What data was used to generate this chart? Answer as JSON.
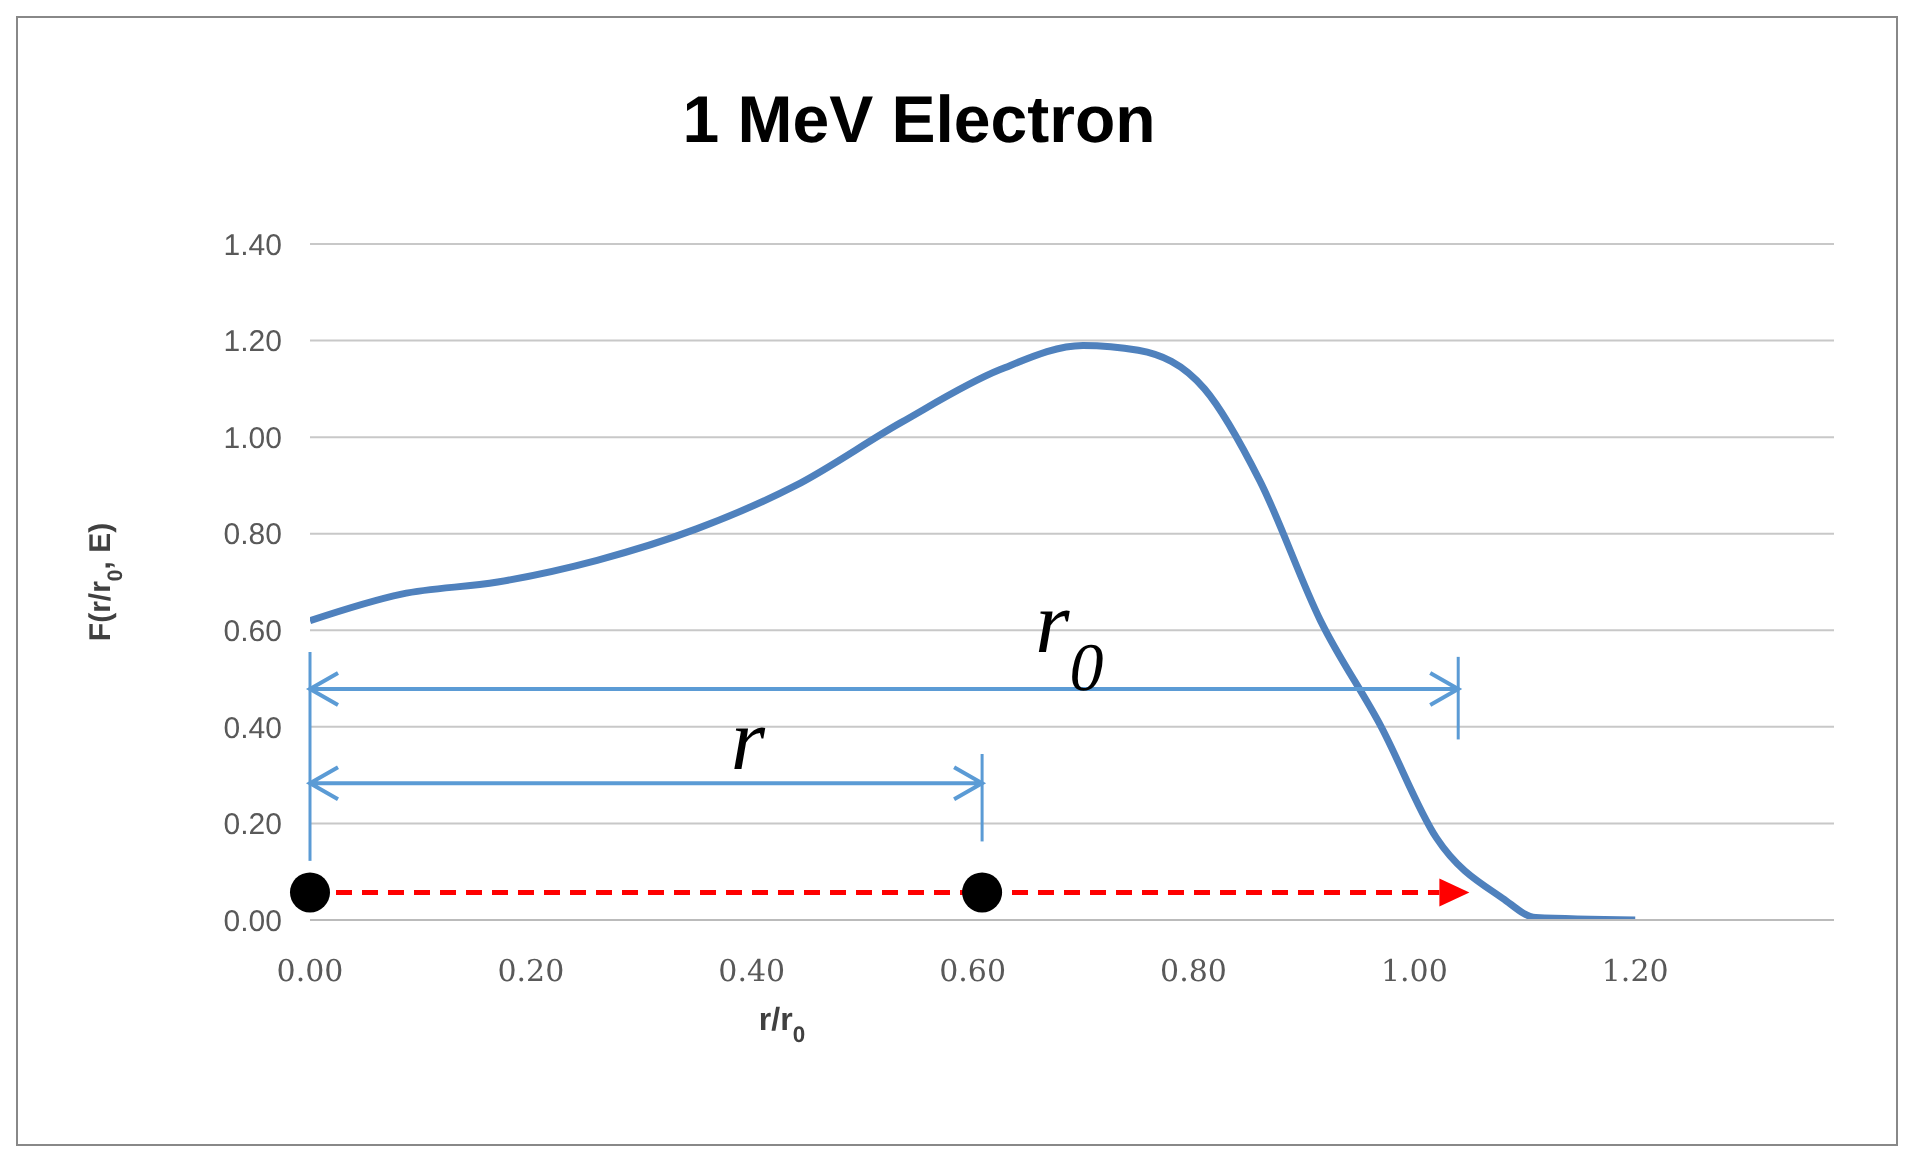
{
  "chart_data": {
    "type": "line",
    "title": "1 MeV Electron",
    "xlabel": "r/r$_{0}$",
    "ylabel": "F(r/r$_{0}$, E)",
    "x": [
      0,
      0.083,
      0.17,
      0.26,
      0.35,
      0.44,
      0.535,
      0.625,
      0.7,
      0.75,
      0.81,
      0.86,
      0.915,
      0.97,
      1.02,
      1.08,
      1.11,
      1.2
    ],
    "series": [
      {
        "color": "#4f81bd",
        "values": [
          0.62,
          0.675,
          0.7,
          0.745,
          0.81,
          0.9,
          1.03,
          1.14,
          1.19,
          1.18,
          1.1,
          0.91,
          0.62,
          0.4,
          0.17,
          0.045,
          0.005,
          0
        ]
      }
    ],
    "xlim": [
      0,
      1.38
    ],
    "xticks": [
      {
        "value": 0,
        "label": "0.00"
      },
      {
        "value": 0.2,
        "label": "0.20"
      },
      {
        "value": 0.4,
        "label": "0.40"
      },
      {
        "value": 0.6,
        "label": "0.60"
      },
      {
        "value": 0.8,
        "label": "0.80"
      },
      {
        "value": 1,
        "label": "1.00"
      },
      {
        "value": 1.2,
        "label": "1.20"
      }
    ],
    "ylim": [
      0,
      1.4
    ],
    "yticks": [
      {
        "value": 0,
        "label": "0.00"
      },
      {
        "value": 0.2,
        "label": "0.20"
      },
      {
        "value": 0.4,
        "label": "0.40"
      },
      {
        "value": 0.6,
        "label": "0.60"
      },
      {
        "value": 0.8,
        "label": "0.80"
      },
      {
        "value": 1,
        "label": "1.00"
      },
      {
        "value": 1.2,
        "label": "1.20"
      },
      {
        "value": 1.4,
        "label": "1.40"
      }
    ],
    "annotations": [
      "r$_{0}$",
      "r"
    ],
    "grid": "y",
    "marker": "none",
    "line_style": "solid",
    "legend": false
  }
}
